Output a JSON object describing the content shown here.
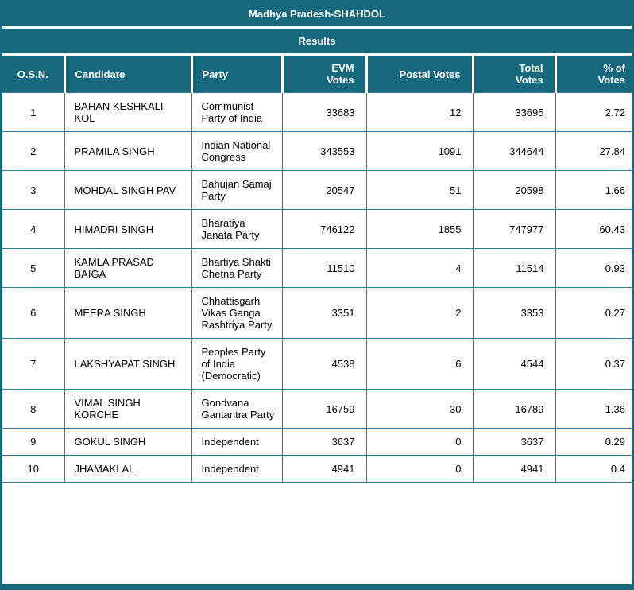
{
  "page": {
    "title": "Madhya Pradesh-SHAHDOL",
    "results_label": "Results"
  },
  "colors": {
    "header_teal": "#16687c",
    "cell_border_teal": "#2d7c90",
    "header_text": "#ffffff",
    "body_text": "#000000"
  },
  "table": {
    "headers": {
      "osn": "O.S.N.",
      "candidate": "Candidate",
      "party": "Party",
      "evm": "EVM\nVotes",
      "postal": "Postal Votes",
      "total": "Total\nVotes",
      "percent": "% of\nVotes"
    },
    "rows": [
      {
        "osn": "1",
        "candidate": "BAHAN KESHKALI KOL",
        "party": "Communist Party of India",
        "evm": "33683",
        "postal": "12",
        "total": "33695",
        "percent": "2.72"
      },
      {
        "osn": "2",
        "candidate": "PRAMILA SINGH",
        "party": "Indian National Congress",
        "evm": "343553",
        "postal": "1091",
        "total": "344644",
        "percent": "27.84"
      },
      {
        "osn": "3",
        "candidate": "MOHDAL SINGH PAV",
        "party": "Bahujan Samaj Party",
        "evm": "20547",
        "postal": "51",
        "total": "20598",
        "percent": "1.66"
      },
      {
        "osn": "4",
        "candidate": "HIMADRI SINGH",
        "party": "Bharatiya Janata Party",
        "evm": "746122",
        "postal": "1855",
        "total": "747977",
        "percent": "60.43"
      },
      {
        "osn": "5",
        "candidate": "KAMLA PRASAD BAIGA",
        "party": "Bhartiya Shakti Chetna Party",
        "evm": "11510",
        "postal": "4",
        "total": "11514",
        "percent": "0.93"
      },
      {
        "osn": "6",
        "candidate": "MEERA SINGH",
        "party": "Chhattisgarh Vikas Ganga Rashtriya Party",
        "evm": "3351",
        "postal": "2",
        "total": "3353",
        "percent": "0.27"
      },
      {
        "osn": "7",
        "candidate": "LAKSHYAPAT SINGH",
        "party": "Peoples Party of India (Democratic)",
        "evm": "4538",
        "postal": "6",
        "total": "4544",
        "percent": "0.37"
      },
      {
        "osn": "8",
        "candidate": "VIMAL SINGH KORCHE",
        "party": "Gondvana Gantantra Party",
        "evm": "16759",
        "postal": "30",
        "total": "16789",
        "percent": "1.36"
      },
      {
        "osn": "9",
        "candidate": "GOKUL SINGH",
        "party": "Independent",
        "evm": "3637",
        "postal": "0",
        "total": "3637",
        "percent": "0.29"
      },
      {
        "osn": "10",
        "candidate": "JHAMAKLAL",
        "party": "Independent",
        "evm": "4941",
        "postal": "0",
        "total": "4941",
        "percent": "0.4"
      }
    ]
  }
}
